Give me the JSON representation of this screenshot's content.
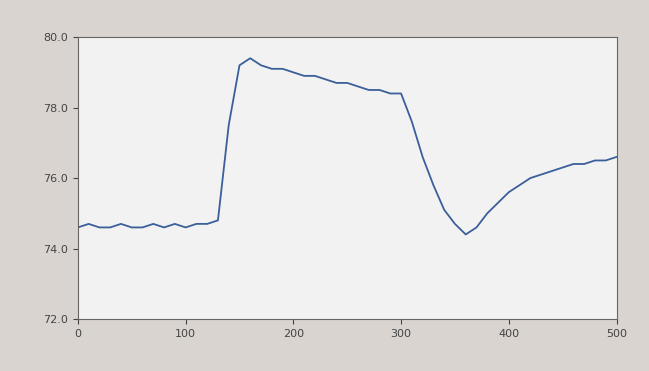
{
  "chart_data": {
    "type": "line",
    "x": [
      0,
      10,
      20,
      30,
      40,
      50,
      60,
      70,
      80,
      90,
      100,
      110,
      120,
      130,
      140,
      150,
      160,
      170,
      180,
      190,
      200,
      210,
      220,
      230,
      240,
      250,
      260,
      270,
      280,
      290,
      300,
      310,
      320,
      330,
      340,
      350,
      360,
      370,
      380,
      390,
      400,
      410,
      420,
      430,
      440,
      450,
      460,
      470,
      480,
      490,
      500
    ],
    "values": [
      74.6,
      74.7,
      74.6,
      74.6,
      74.7,
      74.6,
      74.6,
      74.7,
      74.6,
      74.7,
      74.6,
      74.7,
      74.7,
      74.8,
      77.5,
      79.2,
      79.4,
      79.2,
      79.1,
      79.1,
      79.0,
      78.9,
      78.9,
      78.8,
      78.7,
      78.7,
      78.6,
      78.5,
      78.5,
      78.4,
      78.4,
      77.6,
      76.6,
      75.8,
      75.1,
      74.7,
      74.4,
      74.6,
      75.0,
      75.3,
      75.6,
      75.8,
      76.0,
      76.1,
      76.2,
      76.3,
      76.4,
      76.4,
      76.5,
      76.5,
      76.6
    ],
    "color": "#3b5f9a",
    "xlim": [
      0,
      500
    ],
    "xticks": [
      0,
      100,
      200,
      300,
      400,
      500
    ],
    "ylim": [
      72,
      80
    ],
    "yticks": [
      {
        "value": 72,
        "label": "72.0"
      },
      {
        "value": 74,
        "label": "74.0"
      },
      {
        "value": 76,
        "label": "76.0"
      },
      {
        "value": 78,
        "label": "78.0"
      },
      {
        "value": 80,
        "label": "80.0"
      }
    ],
    "grid": false
  }
}
